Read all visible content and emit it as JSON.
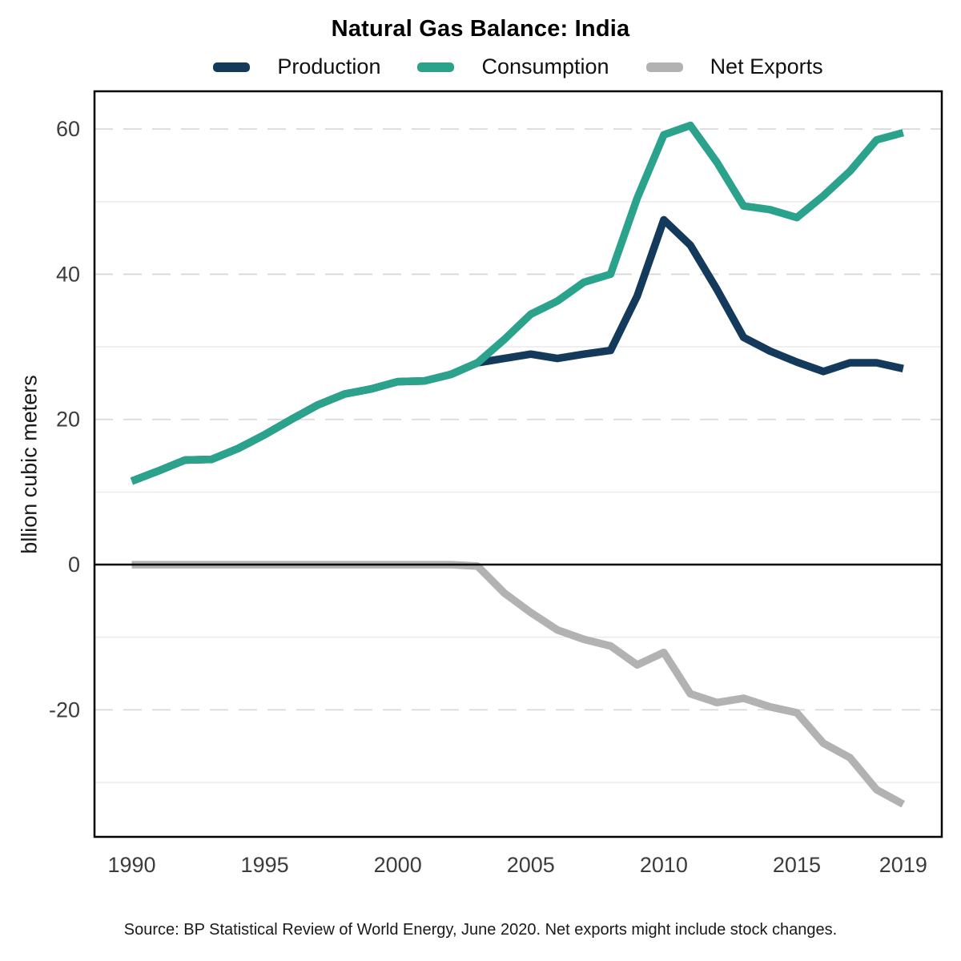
{
  "title": "Natural Gas Balance: India",
  "legend": {
    "items": [
      {
        "label": "Production",
        "color": "#133a5a"
      },
      {
        "label": "Consumption",
        "color": "#2ba28c"
      },
      {
        "label": "Net Exports",
        "color": "#b2b2b2"
      }
    ]
  },
  "y_axis": {
    "label": "bllion cubic meters",
    "tick_values": [
      60,
      40,
      20,
      0,
      -20
    ],
    "tick_labels": [
      "60",
      "40",
      "20",
      "0",
      "-20"
    ]
  },
  "x_axis": {
    "tick_values": [
      1990,
      1995,
      2000,
      2005,
      2010,
      2015,
      2019
    ],
    "tick_labels": [
      "1990",
      "1995",
      "2000",
      "2005",
      "2010",
      "2015",
      "2019"
    ]
  },
  "source_note": "Source: BP Statistical Review of World Energy, June 2020. Net exports might include stock changes.",
  "chart_data": {
    "type": "line",
    "title": "Natural Gas Balance: India",
    "xlabel": "",
    "ylabel": "bllion cubic meters",
    "x": [
      1990,
      1991,
      1992,
      1993,
      1994,
      1995,
      1996,
      1997,
      1998,
      1999,
      2000,
      2001,
      2002,
      2003,
      2004,
      2005,
      2006,
      2007,
      2008,
      2009,
      2010,
      2011,
      2012,
      2013,
      2014,
      2015,
      2016,
      2017,
      2018,
      2019
    ],
    "series": [
      {
        "name": "Production",
        "color": "#133a5a",
        "values": [
          11.5,
          12.9,
          14.4,
          14.5,
          16.0,
          17.9,
          20.0,
          22.0,
          23.5,
          24.2,
          25.2,
          25.3,
          26.2,
          27.8,
          28.4,
          29.0,
          28.4,
          29.0,
          29.5,
          37.0,
          47.5,
          44.0,
          37.9,
          31.3,
          29.4,
          27.9,
          26.6,
          27.8,
          27.8,
          27.0
        ]
      },
      {
        "name": "Consumption",
        "color": "#2ba28c",
        "values": [
          11.5,
          12.9,
          14.4,
          14.5,
          16.0,
          17.9,
          20.0,
          22.0,
          23.5,
          24.2,
          25.2,
          25.3,
          26.2,
          27.8,
          31.0,
          34.5,
          36.3,
          38.9,
          40.0,
          50.5,
          59.2,
          60.5,
          55.4,
          49.4,
          48.9,
          47.8,
          50.8,
          54.2,
          58.5,
          59.5
        ]
      },
      {
        "name": "Net Exports",
        "color": "#b2b2b2",
        "values": [
          0.0,
          0.0,
          0.0,
          0.0,
          0.0,
          0.0,
          0.0,
          0.0,
          0.0,
          0.0,
          0.0,
          0.0,
          0.0,
          -0.2,
          -3.9,
          -6.6,
          -9.0,
          -10.3,
          -11.2,
          -13.8,
          -12.1,
          -17.8,
          -19.0,
          -18.4,
          -19.6,
          -20.4,
          -24.6,
          -26.6,
          -31.0,
          -33.0
        ]
      }
    ],
    "xlim": [
      1988.6,
      2020.45
    ],
    "ylim": [
      -37.5,
      65.2
    ],
    "grid": {
      "major_dashed_y": [
        60,
        40,
        20,
        -20
      ],
      "minor_solid_y": [
        50,
        30,
        10,
        -10,
        -30
      ],
      "zero_line_y": 0
    },
    "legend_position": "top",
    "units": "billion cubic meters"
  }
}
